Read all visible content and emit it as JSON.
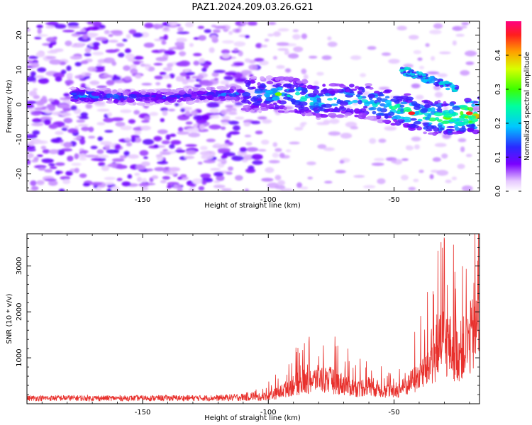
{
  "title": "PAZ1.2024.209.03.26.G21",
  "chart_data": [
    {
      "type": "heatmap",
      "xlabel": "Height of straight line (km)",
      "ylabel": "Frequency (Hz)",
      "xlim": [
        -196,
        -16
      ],
      "ylim": [
        -25,
        24
      ],
      "xticks": [
        -150,
        -100,
        -50
      ],
      "yticks": [
        -20,
        -10,
        0,
        10,
        20
      ],
      "colorbar": {
        "label": "Normalized spectral amplitude",
        "range": [
          0.0,
          0.5
        ],
        "ticks": [
          "0.0",
          "0.1",
          "0.2",
          "0.3",
          "0.4"
        ]
      },
      "ridge": [
        {
          "x": -170,
          "y": 2.5,
          "amp": 0.18
        },
        {
          "x": -150,
          "y": 2.0,
          "amp": 0.15
        },
        {
          "x": -130,
          "y": 2.5,
          "amp": 0.14
        },
        {
          "x": -115,
          "y": 3.0,
          "amp": 0.17
        },
        {
          "x": -100,
          "y": 3.0,
          "amp": 0.22
        },
        {
          "x": -90,
          "y": 2.5,
          "amp": 0.25
        },
        {
          "x": -80,
          "y": 1.0,
          "amp": 0.24
        },
        {
          "x": -70,
          "y": 1.5,
          "amp": 0.22
        },
        {
          "x": -60,
          "y": 1.0,
          "amp": 0.24
        },
        {
          "x": -50,
          "y": -1.0,
          "amp": 0.28
        },
        {
          "x": -40,
          "y": -3.0,
          "amp": 0.3
        },
        {
          "x": -30,
          "y": -4.0,
          "amp": 0.32
        },
        {
          "x": -20,
          "y": -3.0,
          "amp": 0.42
        }
      ]
    },
    {
      "type": "line",
      "xlabel": "Height of straight line (km)",
      "ylabel": "SNR (10 * v/v)",
      "xlim": [
        -196,
        -16
      ],
      "ylim": [
        0,
        3700
      ],
      "xticks": [
        -150,
        -100,
        -50
      ],
      "yticks": [
        1000,
        2000,
        3000
      ],
      "color": "#e8302c",
      "series": [
        {
          "values": [
            {
              "x": -196,
              "y": 120
            },
            {
              "x": -180,
              "y": 130
            },
            {
              "x": -160,
              "y": 120
            },
            {
              "x": -140,
              "y": 130
            },
            {
              "x": -120,
              "y": 130
            },
            {
              "x": -110,
              "y": 170
            },
            {
              "x": -100,
              "y": 280
            },
            {
              "x": -95,
              "y": 420
            },
            {
              "x": -90,
              "y": 700
            },
            {
              "x": -85,
              "y": 750
            },
            {
              "x": -80,
              "y": 900
            },
            {
              "x": -75,
              "y": 850
            },
            {
              "x": -70,
              "y": 700
            },
            {
              "x": -65,
              "y": 550
            },
            {
              "x": -60,
              "y": 650
            },
            {
              "x": -55,
              "y": 500
            },
            {
              "x": -50,
              "y": 420
            },
            {
              "x": -45,
              "y": 650
            },
            {
              "x": -40,
              "y": 1000
            },
            {
              "x": -35,
              "y": 1500
            },
            {
              "x": -30,
              "y": 2300
            },
            {
              "x": -25,
              "y": 1800
            },
            {
              "x": -20,
              "y": 2200
            },
            {
              "x": -16,
              "y": 3000
            }
          ]
        }
      ]
    }
  ]
}
